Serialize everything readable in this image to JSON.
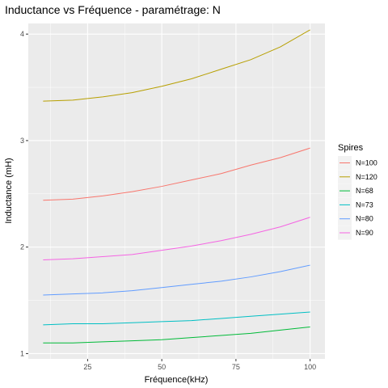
{
  "chart_data": {
    "type": "line",
    "title": "Inductance vs Fréquence - paramétrage: N",
    "xlabel": "Fréquence(kHz)",
    "ylabel": "Inductance (mH)",
    "xlim": [
      5,
      105
    ],
    "ylim": [
      0.95,
      4.1
    ],
    "x_ticks": [
      25,
      50,
      75,
      100
    ],
    "y_ticks": [
      1,
      2,
      3,
      4
    ],
    "grid": true,
    "background": "#ebebeb",
    "legend": {
      "title": "Spires",
      "position": "right"
    },
    "x": [
      10,
      20,
      30,
      40,
      50,
      60,
      70,
      80,
      90,
      100
    ],
    "series": [
      {
        "name": "N=100",
        "color": "#F8766D",
        "values": [
          2.44,
          2.45,
          2.48,
          2.52,
          2.57,
          2.63,
          2.69,
          2.77,
          2.84,
          2.93
        ]
      },
      {
        "name": "N=120",
        "color": "#B79F00",
        "values": [
          3.37,
          3.38,
          3.41,
          3.45,
          3.51,
          3.58,
          3.67,
          3.76,
          3.88,
          4.04
        ]
      },
      {
        "name": "N=68",
        "color": "#00BA38",
        "values": [
          1.1,
          1.1,
          1.11,
          1.12,
          1.13,
          1.15,
          1.17,
          1.19,
          1.22,
          1.25
        ]
      },
      {
        "name": "N=73",
        "color": "#00BFC4",
        "values": [
          1.27,
          1.28,
          1.28,
          1.29,
          1.3,
          1.31,
          1.33,
          1.35,
          1.37,
          1.39
        ]
      },
      {
        "name": "N=80",
        "color": "#619CFF",
        "values": [
          1.55,
          1.56,
          1.57,
          1.59,
          1.62,
          1.65,
          1.68,
          1.72,
          1.77,
          1.83
        ]
      },
      {
        "name": "N=90",
        "color": "#F564E3",
        "values": [
          1.88,
          1.89,
          1.91,
          1.93,
          1.97,
          2.01,
          2.06,
          2.12,
          2.19,
          2.28
        ]
      }
    ]
  }
}
